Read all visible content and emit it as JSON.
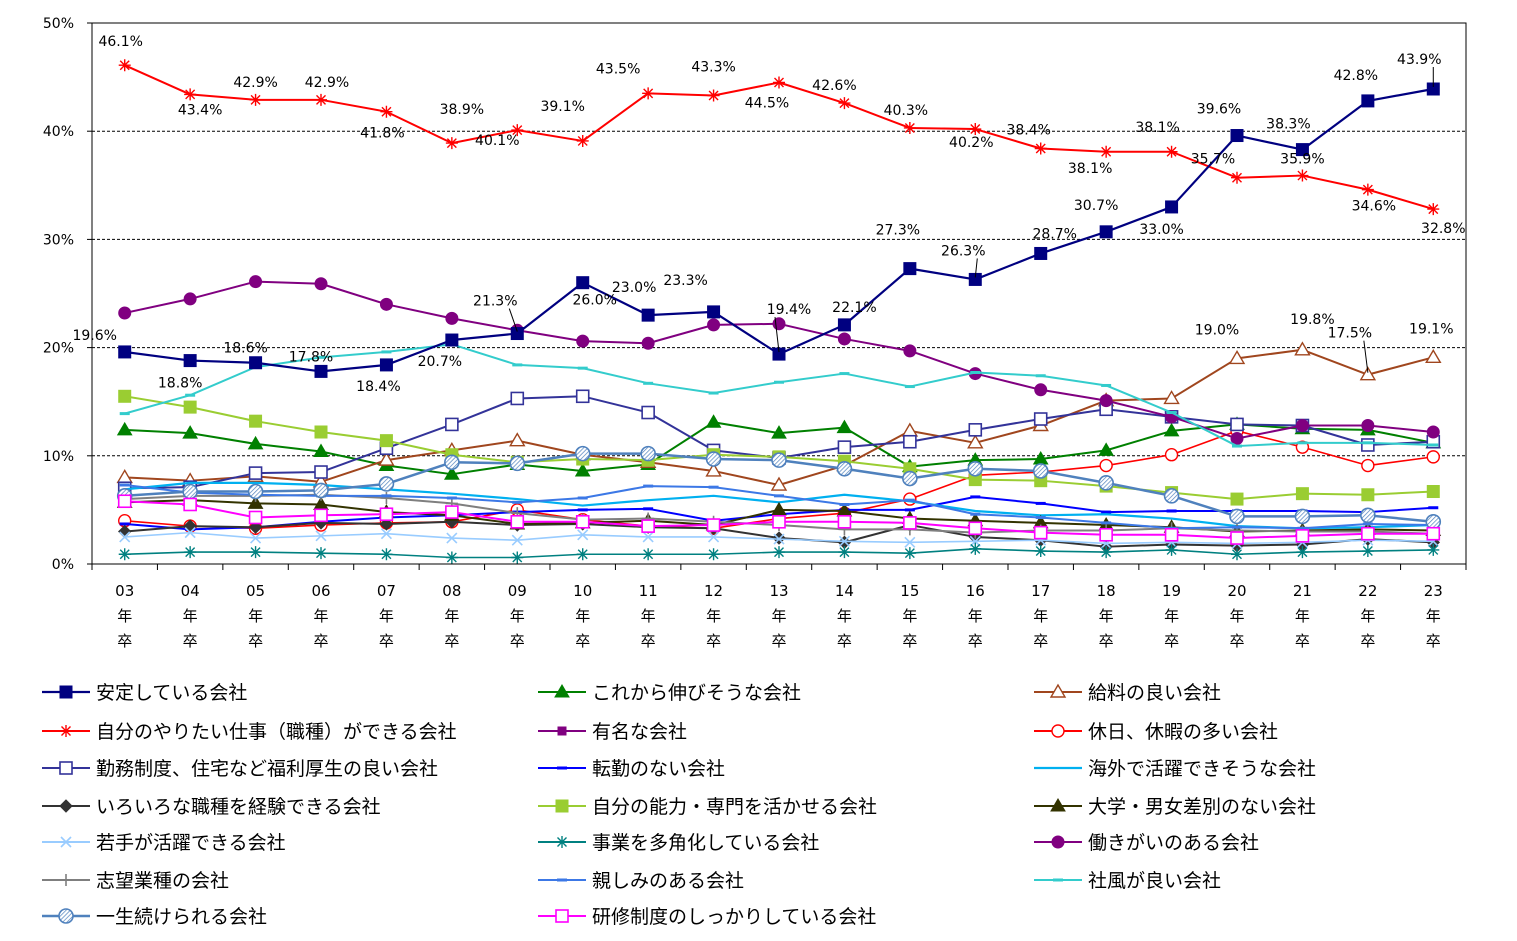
{
  "chart_data": {
    "type": "line",
    "title": "",
    "xlabel": "",
    "ylabel": "",
    "ylim": [
      0,
      50
    ],
    "yticks": [
      "0%",
      "10%",
      "20%",
      "30%",
      "40%",
      "50%"
    ],
    "categories": [
      "03",
      "04",
      "05",
      "06",
      "07",
      "08",
      "09",
      "10",
      "11",
      "12",
      "13",
      "14",
      "15",
      "16",
      "17",
      "18",
      "19",
      "20",
      "21",
      "22",
      "23"
    ],
    "category_suffix": [
      "年",
      "卒"
    ],
    "grid": "horizontal dashed",
    "legend_position": "bottom",
    "series": [
      {
        "name": "安定している会社",
        "color": "#000080",
        "marker": "square-filled",
        "width": 2.2,
        "values": [
          19.6,
          18.8,
          18.6,
          17.8,
          18.4,
          20.7,
          21.3,
          26.0,
          23.0,
          23.3,
          19.4,
          22.1,
          27.3,
          26.3,
          28.7,
          30.7,
          33.0,
          39.6,
          38.3,
          42.8,
          43.9
        ],
        "labels": [
          "19.6%",
          "18.8%",
          "18.6%",
          "17.8%",
          "18.4%",
          "20.7%",
          "21.3%",
          "26.0%",
          "23.0%",
          "23.3%",
          "19.4%",
          "22.1%",
          "27.3%",
          "26.3%",
          "28.7%",
          "30.7%",
          "33.0%",
          "39.6%",
          "38.3%",
          "42.8%",
          "43.9%"
        ]
      },
      {
        "name": "これから伸びそうな会社",
        "color": "#008000",
        "marker": "triangle-filled",
        "width": 2,
        "values": [
          12.4,
          12.1,
          11.1,
          10.4,
          9.1,
          8.3,
          9.2,
          8.6,
          9.2,
          13.1,
          12.1,
          12.6,
          9.0,
          9.6,
          9.7,
          10.5,
          12.3,
          12.9,
          12.5,
          12.4,
          11.2
        ]
      },
      {
        "name": "給料の良い会社",
        "color": "#A0461E",
        "marker": "triangle-open",
        "width": 2,
        "values": [
          8.0,
          7.7,
          8.1,
          7.6,
          9.6,
          10.5,
          11.4,
          10.1,
          9.4,
          8.6,
          7.3,
          9.1,
          12.3,
          11.2,
          12.8,
          15.1,
          15.3,
          19.0,
          19.8,
          17.5,
          19.1
        ],
        "labels": [
          "",
          "",
          "",
          "",
          "",
          "",
          "",
          "",
          "",
          "",
          "",
          "",
          "",
          "",
          "",
          "",
          "",
          "19.0%",
          "19.8%",
          "17.5%",
          "19.1%"
        ]
      },
      {
        "name": "自分のやりたい仕事（職種）ができる会社",
        "color": "#FF0000",
        "marker": "asterisk",
        "width": 2,
        "values": [
          46.1,
          43.4,
          42.9,
          42.9,
          41.8,
          38.9,
          40.1,
          39.1,
          43.5,
          43.3,
          44.5,
          42.6,
          40.3,
          40.2,
          38.4,
          38.1,
          38.1,
          35.7,
          35.9,
          34.6,
          32.8
        ],
        "labels": [
          "46.1%",
          "43.4%",
          "42.9%",
          "42.9%",
          "41.8%",
          "38.9%",
          "40.1%",
          "39.1%",
          "43.5%",
          "43.3%",
          "44.5%",
          "42.6%",
          "40.3%",
          "40.2%",
          "38.4%",
          "38.1%",
          "38.1%",
          "35.7%",
          "35.9%",
          "34.6%",
          "32.8%"
        ]
      },
      {
        "name": "有名な会社",
        "color": "#800080",
        "marker": "square-small",
        "width": 2,
        "values": [
          null,
          null,
          null,
          null,
          null,
          null,
          null,
          null,
          null,
          null,
          null,
          null,
          null,
          null,
          null,
          null,
          null,
          null,
          null,
          null,
          null
        ]
      },
      {
        "name": "休日、休暇の多い会社",
        "color": "#FF0000",
        "marker": "circle-open",
        "width": 1.6,
        "values": [
          4.0,
          3.5,
          3.3,
          3.6,
          3.8,
          3.9,
          5.0,
          4.1,
          3.5,
          3.3,
          4.2,
          4.7,
          6.0,
          8.2,
          8.5,
          9.1,
          10.1,
          12.3,
          10.8,
          9.1,
          9.9
        ]
      },
      {
        "name": "勤務制度、住宅など福利厚生の良い会社",
        "color": "#333399",
        "marker": "square-open",
        "width": 2,
        "values": [
          7.0,
          7.1,
          8.4,
          8.5,
          10.7,
          12.9,
          15.3,
          15.5,
          14.0,
          10.5,
          9.8,
          10.8,
          11.3,
          12.4,
          13.4,
          14.3,
          13.6,
          12.9,
          12.8,
          11.0,
          11.3
        ]
      },
      {
        "name": "転勤のない会社",
        "color": "#0000FF",
        "marker": "dash",
        "width": 2,
        "values": [
          3.7,
          3.2,
          3.4,
          3.9,
          4.3,
          4.5,
          4.8,
          5.0,
          5.1,
          4.0,
          4.6,
          5.0,
          5.0,
          6.2,
          5.6,
          4.8,
          4.9,
          4.9,
          4.9,
          4.8,
          5.2
        ]
      },
      {
        "name": "海外で活躍できそうな会社",
        "color": "#00B0F0",
        "marker": "none",
        "width": 2.2,
        "values": [
          6.9,
          7.5,
          7.5,
          7.3,
          6.9,
          6.5,
          6.0,
          5.4,
          5.9,
          6.3,
          5.7,
          6.4,
          5.8,
          4.9,
          4.5,
          4.6,
          4.2,
          3.5,
          3.3,
          3.4,
          3.6
        ]
      },
      {
        "name": "いろいろな職種を経験できる会社",
        "color": "#333333",
        "marker": "diamond",
        "width": 2,
        "values": [
          3.0,
          3.5,
          3.4,
          3.8,
          3.7,
          3.9,
          3.6,
          3.7,
          3.4,
          3.3,
          2.4,
          2.0,
          3.6,
          2.5,
          2.2,
          1.6,
          1.8,
          1.7,
          1.8,
          2.3,
          2.0
        ]
      },
      {
        "name": "自分の能力・専門を活かせる会社",
        "color": "#9ACD32",
        "marker": "square-filled",
        "width": 2,
        "values": [
          15.5,
          14.5,
          13.2,
          12.2,
          11.4,
          10.1,
          9.4,
          9.7,
          9.6,
          10.1,
          9.9,
          9.5,
          8.8,
          7.8,
          7.7,
          7.2,
          6.6,
          6.0,
          6.5,
          6.4,
          6.7
        ]
      },
      {
        "name": "大学・男女差別のない会社",
        "color": "#333300",
        "marker": "triangle-filled",
        "width": 2,
        "values": [
          5.7,
          5.9,
          5.6,
          5.5,
          4.8,
          4.5,
          3.7,
          3.8,
          4.0,
          3.6,
          5.0,
          4.9,
          4.2,
          4.0,
          3.8,
          3.6,
          3.4,
          3.0,
          3.1,
          3.2,
          3.1
        ]
      },
      {
        "name": "若手が活躍できる会社",
        "color": "#99CCFF",
        "marker": "x",
        "width": 1.6,
        "values": [
          2.5,
          2.9,
          2.4,
          2.6,
          2.8,
          2.4,
          2.2,
          2.7,
          2.5,
          2.5,
          2.3,
          2.1,
          2.0,
          2.1,
          2.2,
          1.9,
          2.0,
          1.9,
          2.0,
          2.2,
          2.1
        ]
      },
      {
        "name": "事業を多角化している会社",
        "color": "#008080",
        "marker": "asterisk",
        "width": 1.6,
        "values": [
          0.9,
          1.1,
          1.1,
          1.0,
          0.9,
          0.6,
          0.6,
          0.9,
          0.9,
          0.9,
          1.1,
          1.1,
          1.0,
          1.4,
          1.2,
          1.1,
          1.3,
          0.9,
          1.1,
          1.2,
          1.3
        ]
      },
      {
        "name": "働きがいのある会社",
        "color": "#800080",
        "marker": "circle-filled",
        "width": 2,
        "values": [
          23.2,
          24.5,
          26.1,
          25.9,
          24.0,
          22.7,
          21.6,
          20.6,
          20.4,
          22.1,
          22.2,
          20.8,
          19.7,
          17.6,
          16.1,
          15.1,
          13.6,
          11.6,
          12.8,
          12.8,
          12.2
        ]
      },
      {
        "name": "志望業種の会社",
        "color": "#7F7F7F",
        "marker": "plus",
        "width": 2,
        "values": [
          6.0,
          6.3,
          6.3,
          6.4,
          6.1,
          5.6,
          4.7,
          4.1,
          4.2,
          3.9,
          3.6,
          3.2,
          3.2,
          2.9,
          3.1,
          3.1,
          3.3,
          3.1,
          3.0,
          3.0,
          2.8
        ]
      },
      {
        "name": "親しみのある会社",
        "color": "#3C78E6",
        "marker": "dash",
        "width": 2,
        "values": [
          7.3,
          6.6,
          6.4,
          6.3,
          6.3,
          6.1,
          5.7,
          6.1,
          7.2,
          7.1,
          6.3,
          5.5,
          5.9,
          4.6,
          4.3,
          3.8,
          3.3,
          3.4,
          3.3,
          3.7,
          3.6
        ]
      },
      {
        "name": "社風が良い会社",
        "color": "#33CCCC",
        "marker": "dash",
        "width": 2,
        "values": [
          13.9,
          15.6,
          18.2,
          19.1,
          19.6,
          20.3,
          18.4,
          18.1,
          16.7,
          15.8,
          16.8,
          17.6,
          16.4,
          17.7,
          17.4,
          16.5,
          14.0,
          10.9,
          11.2,
          11.2,
          11.0
        ]
      },
      {
        "name": "一生続けられる会社",
        "color": "#4F81BD",
        "marker": "circle-hatched",
        "width": 2.5,
        "values": [
          6.3,
          6.7,
          6.7,
          6.8,
          7.4,
          9.4,
          9.3,
          10.2,
          10.2,
          9.7,
          9.6,
          8.8,
          7.9,
          8.8,
          8.6,
          7.5,
          6.3,
          4.4,
          4.4,
          4.5,
          3.9
        ]
      },
      {
        "name": "研修制度のしっかりしている会社",
        "color": "#FF00FF",
        "marker": "square-open",
        "width": 2,
        "values": [
          5.8,
          5.5,
          4.3,
          4.5,
          4.6,
          4.8,
          3.9,
          3.9,
          3.5,
          3.6,
          3.9,
          3.9,
          3.8,
          3.3,
          2.9,
          2.7,
          2.7,
          2.4,
          2.6,
          2.8,
          2.8
        ]
      }
    ]
  }
}
